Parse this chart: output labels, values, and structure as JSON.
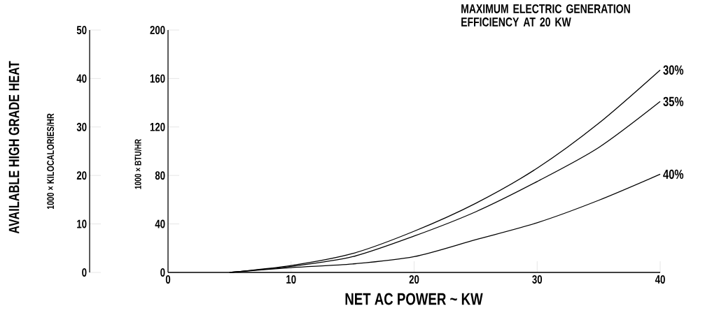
{
  "chart_data": {
    "type": "line",
    "title": "MAXIMUM ELECTRIC GENERATION EFFICIENCY AT 20 KW",
    "xlabel": "NET AC POWER ~ KW",
    "ylabel": "1000 × BTU/HR",
    "y2label": "1000 × KILOCALORIES/HR",
    "annotations": [
      "AVAILABLE HIGH GRADE HEAT"
    ],
    "x": [
      5,
      10,
      15,
      20,
      25,
      30,
      35,
      40
    ],
    "series": [
      {
        "name": "30%",
        "color": "#000000",
        "values": [
          0,
          5.7,
          15.6,
          34,
          57,
          86,
          123,
          167
        ]
      },
      {
        "name": "35%",
        "color": "#000000",
        "values": [
          0,
          5,
          13,
          30,
          50,
          75,
          103,
          141
        ]
      },
      {
        "name": "40%",
        "color": "#000000",
        "values": [
          0,
          4,
          7,
          13,
          27,
          41,
          59.5,
          81
        ]
      }
    ],
    "xlim": [
      0,
      40
    ],
    "xticks": [
      0,
      10,
      20,
      30,
      40
    ],
    "ylim": [
      0,
      200
    ],
    "yticks": [
      0,
      40,
      80,
      120,
      160,
      200
    ],
    "y2lim": [
      0,
      50
    ],
    "y2ticks": [
      0,
      10,
      20,
      30,
      40,
      50
    ],
    "marker": "none",
    "line_style": "solid"
  }
}
